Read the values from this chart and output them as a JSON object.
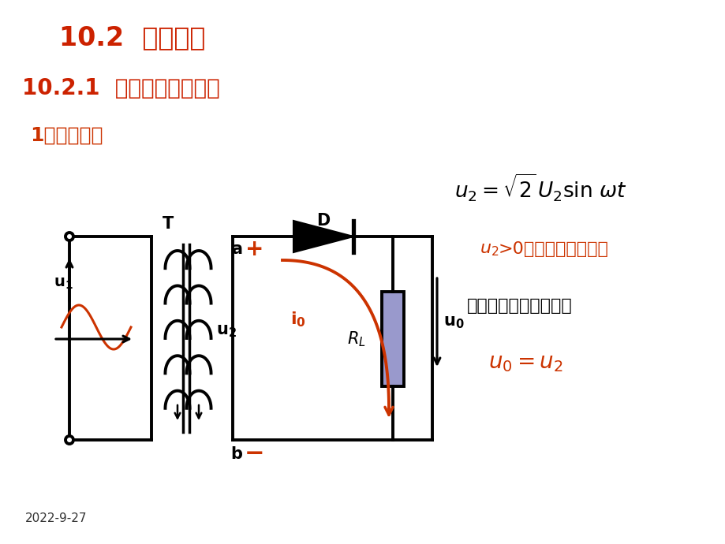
{
  "title1": "10.2  整流电路",
  "title2": "10.2.1  单相半波整流电路",
  "title3": "1、工作原理",
  "date": "2022-9-27",
  "bg_color": "#ffffff",
  "title1_color": "#cc2200",
  "title2_color": "#cc2200",
  "title3_color": "#cc3300",
  "circuit_color": "#000000",
  "red_color": "#cc3300",
  "blue_color": "#9999cc",
  "text2": "忽略二极管正向压降：",
  "text2_red_part": "u₂>0",
  "text2_black_part": "时，二极管导通。"
}
